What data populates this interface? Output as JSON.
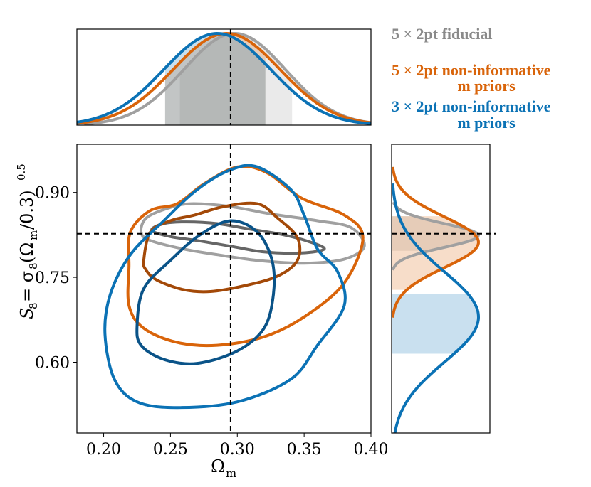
{
  "chart_data": {
    "type": "corner-contour",
    "xlabel": "Ω",
    "xlabel_sub": "m",
    "ylabel_main": "S",
    "ylabel_sub8": "8",
    "ylabel_expr": "= σ",
    "ylabel_paren": "(Ω",
    "ylabel_sub_m": "m",
    "ylabel_tail": "/0.3)",
    "ylabel_exp": "0.5",
    "xlim": [
      0.18,
      0.4
    ],
    "ylim": [
      0.475,
      0.985
    ],
    "x_ticks": [
      0.2,
      0.25,
      0.3,
      0.35,
      0.4
    ],
    "x_tick_labels": [
      "0.20",
      "0.25",
      "0.30",
      "0.35",
      "0.40"
    ],
    "y_ticks": [
      0.6,
      0.75,
      0.9
    ],
    "y_tick_labels": [
      "0.60",
      "0.75",
      "0.90"
    ],
    "fiducial": {
      "omega_m": 0.295,
      "s8": 0.827
    },
    "series": [
      {
        "name": "5 × 2pt fiducial",
        "legend_line1": "5 × 2pt fiducial",
        "legend_line2": "",
        "color": "#a0a0a0",
        "color_inner": "#666666",
        "omega_m_peak": 0.298,
        "omega_m_sigma": 0.038,
        "omega_m_interval": [
          0.257,
          0.341
        ],
        "s8_peak": 0.824,
        "s8_sigma": 0.021,
        "s8_interval": [
          0.797,
          0.858
        ],
        "contour_68": [
          [
            0.236,
            0.833
          ],
          [
            0.245,
            0.845
          ],
          [
            0.262,
            0.848
          ],
          [
            0.285,
            0.845
          ],
          [
            0.31,
            0.835
          ],
          [
            0.335,
            0.825
          ],
          [
            0.355,
            0.812
          ],
          [
            0.365,
            0.8
          ],
          [
            0.348,
            0.793
          ],
          [
            0.32,
            0.795
          ],
          [
            0.295,
            0.805
          ],
          [
            0.27,
            0.815
          ],
          [
            0.25,
            0.822
          ]
        ],
        "contour_95": [
          [
            0.228,
            0.83
          ],
          [
            0.232,
            0.855
          ],
          [
            0.248,
            0.872
          ],
          [
            0.265,
            0.88
          ],
          [
            0.295,
            0.875
          ],
          [
            0.325,
            0.862
          ],
          [
            0.36,
            0.85
          ],
          [
            0.385,
            0.838
          ],
          [
            0.395,
            0.805
          ],
          [
            0.38,
            0.782
          ],
          [
            0.35,
            0.775
          ],
          [
            0.315,
            0.78
          ],
          [
            0.285,
            0.79
          ],
          [
            0.26,
            0.8
          ],
          [
            0.235,
            0.815
          ]
        ]
      },
      {
        "name": "5 × 2pt non-informative m priors",
        "legend_line1": "5 × 2pt non-informative",
        "legend_line2": "m priors",
        "color": "#d9640a",
        "color_inner": "#a34908",
        "omega_m_peak": 0.292,
        "omega_m_sigma": 0.04,
        "omega_m_interval": [
          0.246,
          0.321
        ],
        "s8_peak": 0.812,
        "s8_sigma": 0.045,
        "s8_interval": [
          0.728,
          0.858
        ],
        "contour_68": [
          [
            0.23,
            0.78
          ],
          [
            0.235,
            0.83
          ],
          [
            0.25,
            0.85
          ],
          [
            0.268,
            0.86
          ],
          [
            0.29,
            0.875
          ],
          [
            0.315,
            0.88
          ],
          [
            0.33,
            0.855
          ],
          [
            0.345,
            0.82
          ],
          [
            0.345,
            0.78
          ],
          [
            0.33,
            0.752
          ],
          [
            0.305,
            0.735
          ],
          [
            0.28,
            0.725
          ],
          [
            0.26,
            0.728
          ],
          [
            0.24,
            0.745
          ],
          [
            0.232,
            0.762
          ]
        ],
        "contour_95": [
          [
            0.219,
            0.77
          ],
          [
            0.22,
            0.83
          ],
          [
            0.235,
            0.868
          ],
          [
            0.255,
            0.88
          ],
          [
            0.275,
            0.915
          ],
          [
            0.3,
            0.945
          ],
          [
            0.322,
            0.935
          ],
          [
            0.348,
            0.89
          ],
          [
            0.38,
            0.86
          ],
          [
            0.394,
            0.82
          ],
          [
            0.38,
            0.74
          ],
          [
            0.35,
            0.68
          ],
          [
            0.32,
            0.645
          ],
          [
            0.285,
            0.63
          ],
          [
            0.255,
            0.635
          ],
          [
            0.23,
            0.66
          ],
          [
            0.219,
            0.7
          ]
        ]
      },
      {
        "name": "3 × 2pt non-informative m priors",
        "legend_line1": "3 × 2pt non-informative",
        "legend_line2": "m priors",
        "color": "#0b72b5",
        "color_inner": "#0a5388",
        "omega_m_peak": 0.285,
        "omega_m_sigma": 0.04,
        "omega_m_interval": [
          0.246,
          0.321
        ],
        "s8_peak": 0.68,
        "s8_sigma": 0.08,
        "s8_interval": [
          0.615,
          0.72
        ],
        "contour_68": [
          [
            0.225,
            0.665
          ],
          [
            0.23,
            0.73
          ],
          [
            0.25,
            0.78
          ],
          [
            0.272,
            0.825
          ],
          [
            0.295,
            0.85
          ],
          [
            0.315,
            0.83
          ],
          [
            0.326,
            0.78
          ],
          [
            0.327,
            0.72
          ],
          [
            0.32,
            0.66
          ],
          [
            0.3,
            0.62
          ],
          [
            0.27,
            0.598
          ],
          [
            0.245,
            0.605
          ],
          [
            0.228,
            0.63
          ]
        ],
        "contour_95": [
          [
            0.201,
            0.65
          ],
          [
            0.205,
            0.72
          ],
          [
            0.22,
            0.79
          ],
          [
            0.245,
            0.85
          ],
          [
            0.27,
            0.905
          ],
          [
            0.295,
            0.94
          ],
          [
            0.315,
            0.945
          ],
          [
            0.34,
            0.905
          ],
          [
            0.35,
            0.86
          ],
          [
            0.36,
            0.8
          ],
          [
            0.375,
            0.76
          ],
          [
            0.38,
            0.7
          ],
          [
            0.36,
            0.63
          ],
          [
            0.34,
            0.57
          ],
          [
            0.3,
            0.53
          ],
          [
            0.255,
            0.52
          ],
          [
            0.225,
            0.53
          ],
          [
            0.208,
            0.57
          ]
        ]
      }
    ]
  }
}
